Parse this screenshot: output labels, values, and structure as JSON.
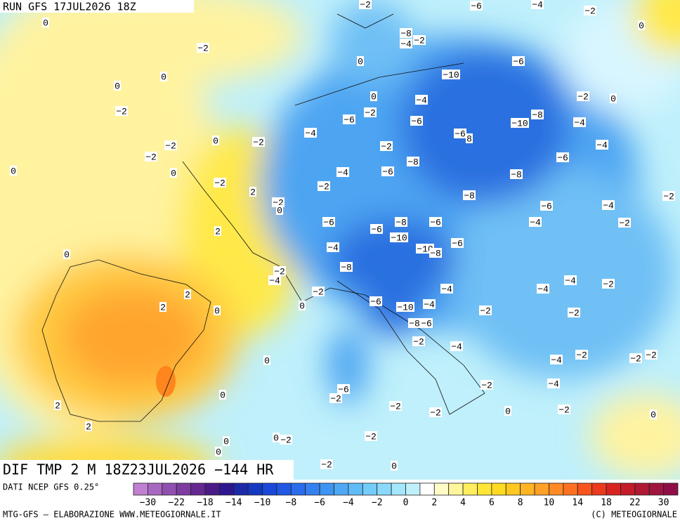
{
  "header": {
    "run": "RUN GFS 17JUL2026 18Z"
  },
  "map": {
    "title": "DIF TMP 2 M 18Z23JUL2026 −144 HR",
    "labels": [
      "0",
      "−2",
      "−6",
      "−4",
      "−2",
      "0",
      "−2",
      "−8",
      "−4",
      "−2",
      "0",
      "−6",
      "0",
      "0",
      "−10",
      "0",
      "−4",
      "−2",
      "0",
      "−2",
      "−6",
      "−2",
      "−6",
      "−8",
      "−10",
      "−4",
      "−4",
      "−6",
      "8",
      "0",
      "−2",
      "−2",
      "−2",
      "−2",
      "−4",
      "−6",
      "−8",
      "0",
      "0",
      "−4",
      "−6",
      "−8",
      "−2",
      "−2",
      "2",
      "−2",
      "0",
      "−8",
      "−2",
      "−6",
      "−4",
      "−6",
      "−8",
      "−6",
      "−4",
      "−2",
      "2",
      "−6",
      "−10",
      "−6",
      "−4",
      "−10",
      "−8",
      "0",
      "−8",
      "−2",
      "−4",
      "−4",
      "−2",
      "−2",
      "2",
      "−4",
      "−4",
      "0",
      "2",
      "0",
      "−6",
      "−10",
      "−4",
      "−2",
      "−2",
      "−6",
      "−8",
      "−2",
      "−4",
      "0",
      "−2",
      "−2",
      "−4",
      "−2",
      "−6",
      "−2",
      "−2",
      "−4",
      "0",
      "2",
      "−2",
      "−2",
      "0",
      "−2",
      "0",
      "2",
      "0",
      "−2",
      "−2",
      "0",
      "0",
      "−2",
      "0"
    ]
  },
  "footer": {
    "source": "DATI NCEP GFS 0.25°",
    "credit": "MTG-GFS — ELABORAZIONE WWW.METEOGIORNALE.IT",
    "copyright": "(C) METEOGIORNALE"
  },
  "colorbar": {
    "colors": [
      "#c07fd0",
      "#a868c0",
      "#9050b0",
      "#7c3ca0",
      "#642890",
      "#4a1a88",
      "#2e1690",
      "#1c2aa8",
      "#1438c0",
      "#1a48d8",
      "#2058e4",
      "#2a6cec",
      "#3480f0",
      "#3e94f2",
      "#4ea8f4",
      "#60bcf6",
      "#74ccf8",
      "#8ad9fa",
      "#a4e6fb",
      "#c0f0fc",
      "#ffffff",
      "#fffcc8",
      "#fff59a",
      "#ffee60",
      "#ffe634",
      "#ffda20",
      "#ffc820",
      "#ffb424",
      "#ffa028",
      "#ff8a24",
      "#ff7020",
      "#f8541c",
      "#ec3a1c",
      "#d82420",
      "#c41c28",
      "#b01834",
      "#a01440",
      "#900e48"
    ],
    "labels": [
      "−30",
      "−22",
      "−18",
      "−14",
      "−10",
      "−8",
      "−6",
      "−4",
      "−2",
      "0",
      "2",
      "4",
      "6",
      "8",
      "10",
      "14",
      "18",
      "22",
      "30"
    ]
  }
}
